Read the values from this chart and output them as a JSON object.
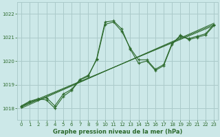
{
  "title": "Graphe pression niveau de la mer (hPa)",
  "background_color": "#cce8e8",
  "grid_color": "#aacaca",
  "line_color": "#2d6a2d",
  "xlim": [
    -0.5,
    23.5
  ],
  "ylim": [
    1017.5,
    1022.5
  ],
  "yticks": [
    1018,
    1019,
    1020,
    1021,
    1022
  ],
  "xticks": [
    0,
    1,
    2,
    3,
    4,
    5,
    6,
    7,
    8,
    9,
    10,
    11,
    12,
    13,
    14,
    15,
    16,
    17,
    18,
    19,
    20,
    21,
    22,
    23
  ],
  "series": [
    {
      "x": [
        0,
        1,
        2,
        3,
        4,
        5,
        6,
        7,
        8,
        9,
        10,
        11,
        12,
        13,
        14,
        15,
        16,
        17,
        18,
        19,
        20,
        21,
        22,
        23
      ],
      "y": [
        1018.1,
        1018.3,
        1018.4,
        1018.35,
        1018.0,
        1018.5,
        1018.75,
        1019.2,
        1019.35,
        1020.1,
        1021.65,
        1021.7,
        1021.35,
        1020.5,
        1019.9,
        1020.0,
        1019.6,
        1019.8,
        1020.7,
        1021.1,
        1020.9,
        1021.0,
        1021.1,
        1021.5
      ]
    },
    {
      "x": [
        0,
        1,
        2,
        3,
        4,
        5,
        6,
        7,
        8,
        9,
        10,
        11,
        12,
        13,
        14,
        15,
        16,
        17,
        18,
        19,
        20,
        21,
        22,
        23
      ],
      "y": [
        1018.05,
        1018.25,
        1018.35,
        1018.45,
        1018.1,
        1018.6,
        1018.8,
        1019.22,
        1019.4,
        1020.05,
        1021.55,
        1021.65,
        1021.25,
        1020.55,
        1020.05,
        1020.05,
        1019.65,
        1019.85,
        1020.75,
        1021.05,
        1020.95,
        1021.05,
        1021.15,
        1021.55
      ]
    },
    {
      "x": [
        0,
        23
      ],
      "y": [
        1018.1,
        1021.5
      ],
      "straight": true
    },
    {
      "x": [
        0,
        23
      ],
      "y": [
        1018.0,
        1021.6
      ],
      "straight": true
    },
    {
      "x": [
        0,
        23
      ],
      "y": [
        1018.05,
        1021.55
      ],
      "straight": true
    }
  ],
  "figsize": [
    3.2,
    2.0
  ],
  "dpi": 100,
  "tick_labelsize": 5,
  "xlabel_fontsize": 6,
  "xlabel_fontweight": "bold"
}
